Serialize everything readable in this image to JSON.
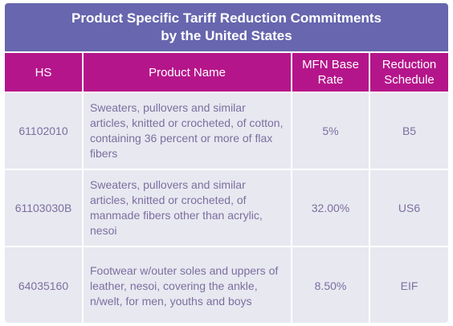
{
  "title": {
    "line1": "Product Specific Tariff Reduction Commitments",
    "line2": "by the United States"
  },
  "headers": {
    "hs": "HS",
    "product_name": "Product Name",
    "mfn_base_rate": "MFN Base Rate",
    "reduction_schedule": "Reduction Schedule"
  },
  "rows": [
    {
      "hs": "61102010",
      "product_name": "Sweaters, pullovers and similar articles, knitted or crocheted, of cotton, containing 36 percent or more of flax fibers",
      "mfn_base_rate": "5%",
      "reduction_schedule": "B5"
    },
    {
      "hs": "61103030B",
      "product_name": "Sweaters, pullovers and similar articles, knitted or crocheted, of manmade fibers other than acrylic, nesoi",
      "mfn_base_rate": "32.00%",
      "reduction_schedule": "US6"
    },
    {
      "hs": "64035160",
      "product_name": "Footwear w/outer soles and uppers of leather, nesoi, covering the ankle, n/welt, for men, youths and boys",
      "mfn_base_rate": "8.50%",
      "reduction_schedule": "EIF"
    }
  ],
  "colors": {
    "title_bg": "#6766ae",
    "header_bg": "#b5158a",
    "cell_bg": "#e8e8f1",
    "cell_text": "#7b6f9e"
  }
}
